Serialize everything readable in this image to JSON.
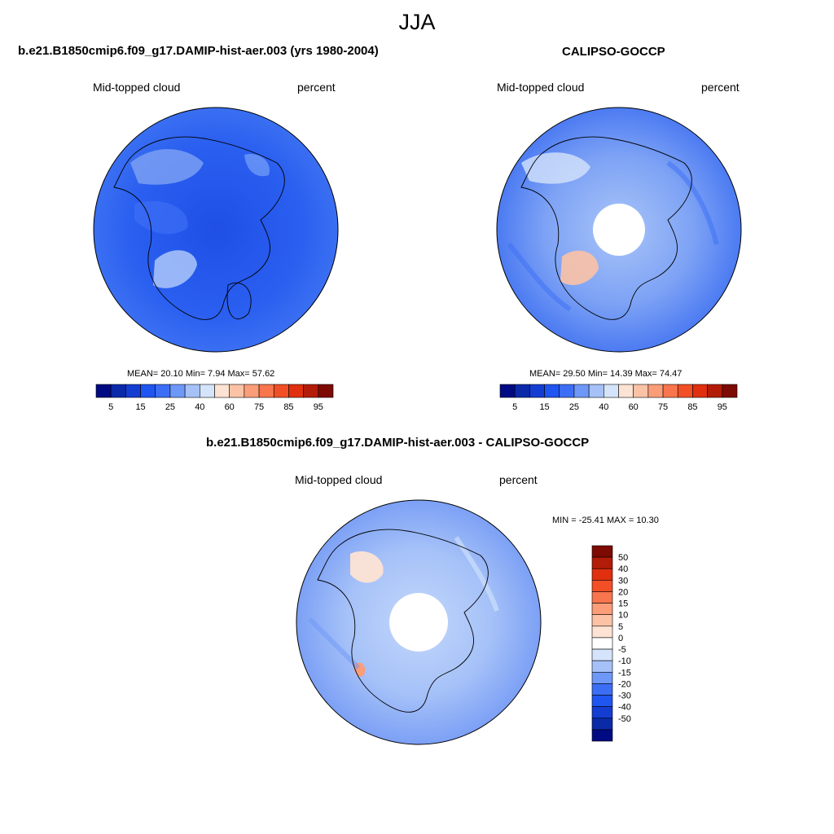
{
  "title": "JJA",
  "panels": {
    "model": {
      "title": "b.e21.B1850cmip6.f09_g17.DAMIP-hist-aer.003 (yrs 1980-2004)",
      "variable": "Mid-topped cloud",
      "units": "percent",
      "stats": "MEAN=  20.10  Min=   7.94  Max=  57.62"
    },
    "obs": {
      "title": "CALIPSO-GOCCP",
      "variable": "Mid-topped cloud",
      "units": "percent",
      "stats": "MEAN=  29.50  Min=  14.39  Max=  74.47"
    },
    "diff": {
      "title": "b.e21.B1850cmip6.f09_g17.DAMIP-hist-aer.003 - CALIPSO-GOCCP",
      "variable": "Mid-topped cloud",
      "units": "percent",
      "stats": "MIN = -25.41 MAX =  10.30"
    }
  },
  "colorbar_abs": {
    "colors": [
      "#000a82",
      "#0a2aa8",
      "#143dd2",
      "#1f55f0",
      "#3c6ef5",
      "#6e98f7",
      "#a5c1f8",
      "#d5e4fb",
      "#fde3d4",
      "#fcc2a6",
      "#fb9d78",
      "#f8754d",
      "#f24f26",
      "#e0300f",
      "#b31c08",
      "#7d0a03"
    ],
    "ticks": [
      "5",
      "15",
      "25",
      "40",
      "60",
      "75",
      "85",
      "95"
    ]
  },
  "colorbar_diff": {
    "colors": [
      "#7d0a03",
      "#b31c08",
      "#e0300f",
      "#f24f26",
      "#f8754d",
      "#fb9d78",
      "#fcc2a6",
      "#fde3d4",
      "#ffffff",
      "#d5e4fb",
      "#a5c1f8",
      "#6e98f7",
      "#3c6ef5",
      "#1f55f0",
      "#143dd2",
      "#0a2aa8",
      "#000a82"
    ],
    "ticks": [
      "50",
      "40",
      "30",
      "20",
      "15",
      "10",
      "5",
      "0",
      "-5",
      "-10",
      "-15",
      "-20",
      "-30",
      "-40",
      "-50"
    ]
  }
}
